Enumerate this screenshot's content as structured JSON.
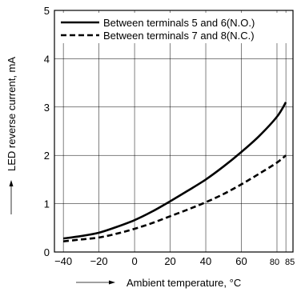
{
  "chart_data": {
    "type": "line",
    "xlabel": "Ambient temperature, °C",
    "ylabel": "LED reverse current, mA",
    "xlim": [
      -45,
      89
    ],
    "ylim": [
      0,
      5
    ],
    "x_ticks": [
      -40,
      -20,
      0,
      20,
      40,
      60,
      80,
      85
    ],
    "x_tick_labels": [
      "−40",
      "−20",
      "0",
      "20",
      "40",
      "60",
      "80",
      "85"
    ],
    "y_ticks": [
      0,
      1,
      2,
      3,
      4,
      5
    ],
    "y_tick_labels": [
      "0",
      "1",
      "2",
      "3",
      "4",
      "5"
    ],
    "grid": true,
    "legend_position": "top-left",
    "series": [
      {
        "name": "Between terminals 5 and 6(N.O.)",
        "style": "solid",
        "color": "#000000",
        "x": [
          -40,
          -30,
          -20,
          -10,
          0,
          10,
          20,
          30,
          40,
          50,
          60,
          70,
          80,
          85
        ],
        "y": [
          0.28,
          0.33,
          0.4,
          0.52,
          0.66,
          0.84,
          1.05,
          1.27,
          1.5,
          1.77,
          2.07,
          2.4,
          2.8,
          3.1
        ]
      },
      {
        "name": "Between terminals 7 and 8(N.C.)",
        "style": "dashed",
        "color": "#000000",
        "x": [
          -40,
          -30,
          -20,
          -10,
          0,
          10,
          20,
          30,
          40,
          50,
          60,
          70,
          80,
          85
        ],
        "y": [
          0.22,
          0.26,
          0.3,
          0.38,
          0.48,
          0.6,
          0.74,
          0.88,
          1.03,
          1.2,
          1.4,
          1.62,
          1.85,
          2.0
        ]
      }
    ]
  }
}
